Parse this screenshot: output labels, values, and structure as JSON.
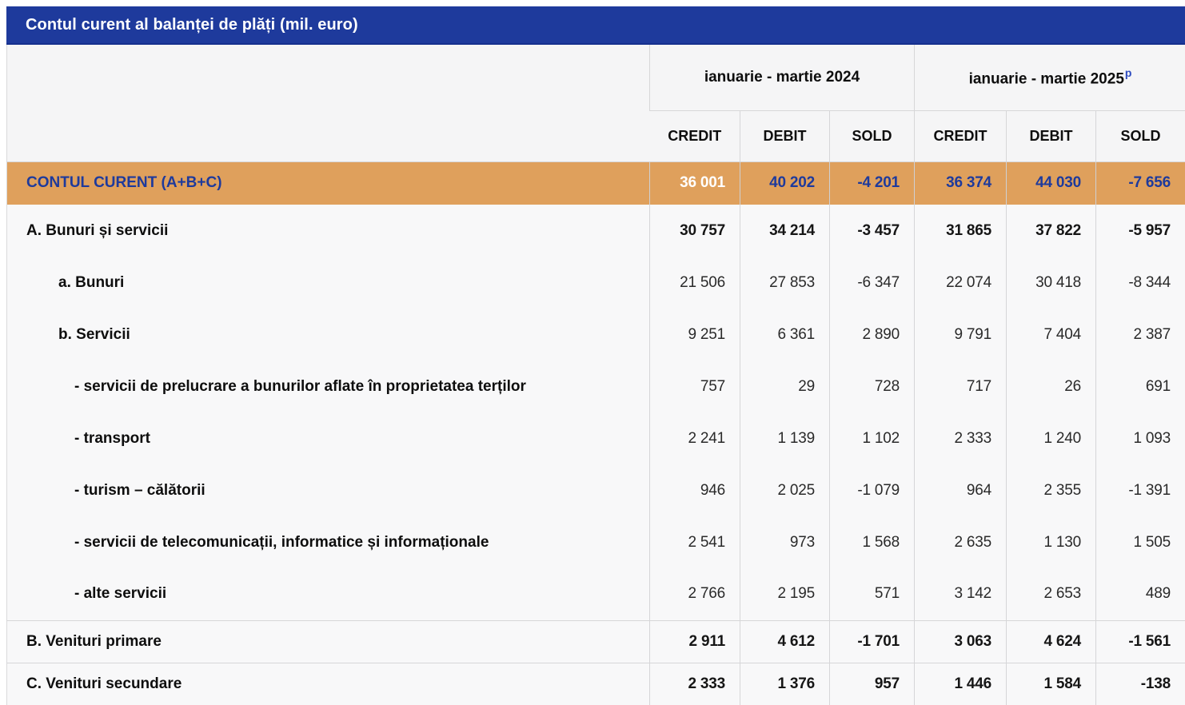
{
  "title_bar": {
    "title": "Contul curent al balanței de plăți (mil. euro)"
  },
  "header": {
    "period_2024": "ianuarie - martie 2024",
    "period_2025": "ianuarie - martie 2025",
    "period_2025_superscript": "p",
    "columns": [
      "CREDIT",
      "DEBIT",
      "SOLD",
      "CREDIT",
      "DEBIT",
      "SOLD"
    ]
  },
  "colors": {
    "title_bar_bg": "#1e3a9c",
    "total_row_bg": "#dfa05c",
    "accent_blue_text": "#1e3a9c",
    "superscript_blue": "#2d4bc0",
    "grid_border": "#d6d6d8",
    "cell_bg": "#f8f8f9"
  },
  "rows": [
    {
      "label": "CONTUL CURENT (A+B+C)",
      "values": [
        "36 001",
        "40 202",
        "-4 201",
        "36 374",
        "44 030",
        "-7 656"
      ]
    },
    {
      "label": "A. Bunuri și servicii",
      "values": [
        "30 757",
        "34 214",
        "-3 457",
        "31 865",
        "37 822",
        "-5 957"
      ]
    },
    {
      "label": "a. Bunuri",
      "values": [
        "21 506",
        "27 853",
        "-6 347",
        "22 074",
        "30 418",
        "-8 344"
      ]
    },
    {
      "label": "b. Servicii",
      "values": [
        "9 251",
        "6 361",
        "2 890",
        "9 791",
        "7 404",
        "2 387"
      ]
    },
    {
      "label": "- servicii de prelucrare a bunurilor aflate în proprietatea terților",
      "values": [
        "757",
        "29",
        "728",
        "717",
        "26",
        "691"
      ]
    },
    {
      "label": "- transport",
      "values": [
        "2 241",
        "1 139",
        "1 102",
        "2 333",
        "1 240",
        "1 093"
      ]
    },
    {
      "label": "- turism – călătorii",
      "values": [
        "946",
        "2 025",
        "-1 079",
        "964",
        "2 355",
        "-1 391"
      ]
    },
    {
      "label": "- servicii de telecomunicații, informatice și informaționale",
      "values": [
        "2 541",
        "973",
        "1 568",
        "2 635",
        "1 130",
        "1 505"
      ]
    },
    {
      "label": "- alte servicii",
      "values": [
        "2 766",
        "2 195",
        "571",
        "3 142",
        "2 653",
        "489"
      ]
    },
    {
      "label": "B. Venituri primare",
      "values": [
        "2 911",
        "4 612",
        "-1 701",
        "3 063",
        "4 624",
        "-1 561"
      ]
    },
    {
      "label": "C. Venituri secundare",
      "values": [
        "2 333",
        "1 376",
        "957",
        "1 446",
        "1 584",
        "-138"
      ]
    }
  ]
}
